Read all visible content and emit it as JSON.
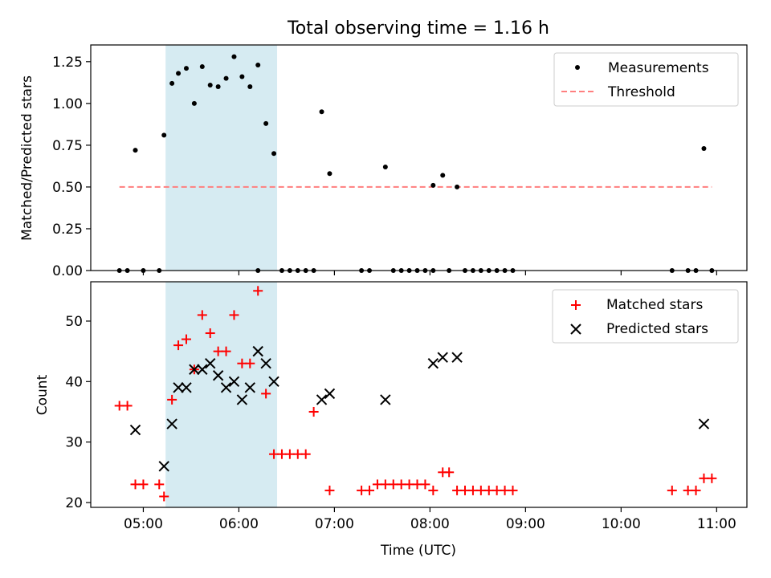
{
  "title": "Total observing time = 1.16 h",
  "chart_data": [
    {
      "type": "scatter",
      "panel": "top",
      "ylabel": "Matched/Predicted stars",
      "xlabel": "",
      "x_range": [
        "04:27",
        "11:19"
      ],
      "ylim": [
        0.0,
        1.35
      ],
      "yticks": [
        "0.00",
        "0.25",
        "0.50",
        "0.75",
        "1.00",
        "1.25"
      ],
      "shaded_interval": [
        "05:14",
        "06:24"
      ],
      "shade_color": "#add8e6",
      "legend_position": "top-right",
      "series": [
        {
          "name": "Measurements",
          "color": "#000000",
          "marker": "dot",
          "points": [
            [
              "04:45",
              0.0
            ],
            [
              "04:50",
              0.0
            ],
            [
              "04:55",
              0.72
            ],
            [
              "05:00",
              0.0
            ],
            [
              "05:10",
              0.0
            ],
            [
              "05:13",
              0.81
            ],
            [
              "05:18",
              1.12
            ],
            [
              "05:22",
              1.18
            ],
            [
              "05:27",
              1.21
            ],
            [
              "05:32",
              1.0
            ],
            [
              "05:37",
              1.22
            ],
            [
              "05:42",
              1.11
            ],
            [
              "05:47",
              1.1
            ],
            [
              "05:52",
              1.15
            ],
            [
              "05:57",
              1.28
            ],
            [
              "06:02",
              1.16
            ],
            [
              "06:07",
              1.1
            ],
            [
              "06:12",
              0.0
            ],
            [
              "06:12",
              1.23
            ],
            [
              "06:17",
              0.88
            ],
            [
              "06:22",
              0.7
            ],
            [
              "06:27",
              0.0
            ],
            [
              "06:32",
              0.0
            ],
            [
              "06:37",
              0.0
            ],
            [
              "06:42",
              0.0
            ],
            [
              "06:47",
              0.0
            ],
            [
              "06:52",
              0.95
            ],
            [
              "06:57",
              0.58
            ],
            [
              "07:17",
              0.0
            ],
            [
              "07:22",
              0.0
            ],
            [
              "07:32",
              0.62
            ],
            [
              "07:37",
              0.0
            ],
            [
              "07:42",
              0.0
            ],
            [
              "07:47",
              0.0
            ],
            [
              "07:52",
              0.0
            ],
            [
              "07:57",
              0.0
            ],
            [
              "08:02",
              0.0
            ],
            [
              "08:02",
              0.51
            ],
            [
              "08:08",
              0.57
            ],
            [
              "08:12",
              0.0
            ],
            [
              "08:17",
              0.5
            ],
            [
              "08:22",
              0.0
            ],
            [
              "08:27",
              0.0
            ],
            [
              "08:32",
              0.0
            ],
            [
              "08:37",
              0.0
            ],
            [
              "08:42",
              0.0
            ],
            [
              "08:47",
              0.0
            ],
            [
              "08:52",
              0.0
            ],
            [
              "10:32",
              0.0
            ],
            [
              "10:42",
              0.0
            ],
            [
              "10:47",
              0.0
            ],
            [
              "10:52",
              0.73
            ],
            [
              "10:57",
              0.0
            ]
          ]
        },
        {
          "name": "Threshold",
          "color": "#ff7f7f",
          "marker": "dashed-line",
          "points": [
            [
              "04:45",
              0.5
            ],
            [
              "10:57",
              0.5
            ]
          ]
        }
      ]
    },
    {
      "type": "scatter",
      "panel": "bottom",
      "xlabel": "Time (UTC)",
      "ylabel": "Count",
      "x_range": [
        "04:27",
        "11:19"
      ],
      "xticks": [
        "05:00",
        "06:00",
        "07:00",
        "08:00",
        "09:00",
        "10:00",
        "11:00"
      ],
      "ylim": [
        19.2,
        56.5
      ],
      "yticks": [
        "20",
        "30",
        "40",
        "50"
      ],
      "shaded_interval": [
        "05:14",
        "06:24"
      ],
      "shade_color": "#add8e6",
      "legend_position": "top-right",
      "series": [
        {
          "name": "Matched stars",
          "color": "#ff0000",
          "marker": "plus",
          "points": [
            [
              "04:45",
              36
            ],
            [
              "04:50",
              36
            ],
            [
              "04:55",
              23
            ],
            [
              "05:00",
              23
            ],
            [
              "05:10",
              23
            ],
            [
              "05:13",
              21
            ],
            [
              "05:18",
              37
            ],
            [
              "05:22",
              46
            ],
            [
              "05:27",
              47
            ],
            [
              "05:32",
              42
            ],
            [
              "05:37",
              51
            ],
            [
              "05:42",
              48
            ],
            [
              "05:47",
              45
            ],
            [
              "05:52",
              45
            ],
            [
              "05:57",
              51
            ],
            [
              "06:02",
              43
            ],
            [
              "06:07",
              43
            ],
            [
              "06:12",
              55
            ],
            [
              "06:17",
              38
            ],
            [
              "06:22",
              28
            ],
            [
              "06:27",
              28
            ],
            [
              "06:32",
              28
            ],
            [
              "06:37",
              28
            ],
            [
              "06:42",
              28
            ],
            [
              "06:47",
              35
            ],
            [
              "06:57",
              22
            ],
            [
              "07:17",
              22
            ],
            [
              "07:22",
              22
            ],
            [
              "07:27",
              23
            ],
            [
              "07:32",
              23
            ],
            [
              "07:37",
              23
            ],
            [
              "07:42",
              23
            ],
            [
              "07:47",
              23
            ],
            [
              "07:52",
              23
            ],
            [
              "07:57",
              23
            ],
            [
              "08:02",
              22
            ],
            [
              "08:08",
              25
            ],
            [
              "08:12",
              25
            ],
            [
              "08:17",
              22
            ],
            [
              "08:22",
              22
            ],
            [
              "08:27",
              22
            ],
            [
              "08:32",
              22
            ],
            [
              "08:37",
              22
            ],
            [
              "08:42",
              22
            ],
            [
              "08:47",
              22
            ],
            [
              "08:52",
              22
            ],
            [
              "10:32",
              22
            ],
            [
              "10:42",
              22
            ],
            [
              "10:47",
              22
            ],
            [
              "10:52",
              24
            ],
            [
              "10:57",
              24
            ]
          ]
        },
        {
          "name": "Predicted stars",
          "color": "#000000",
          "marker": "x",
          "points": [
            [
              "04:55",
              32
            ],
            [
              "05:13",
              26
            ],
            [
              "05:18",
              33
            ],
            [
              "05:22",
              39
            ],
            [
              "05:27",
              39
            ],
            [
              "05:32",
              42
            ],
            [
              "05:37",
              42
            ],
            [
              "05:42",
              43
            ],
            [
              "05:47",
              41
            ],
            [
              "05:52",
              39
            ],
            [
              "05:57",
              40
            ],
            [
              "06:02",
              37
            ],
            [
              "06:07",
              39
            ],
            [
              "06:12",
              45
            ],
            [
              "06:17",
              43
            ],
            [
              "06:22",
              40
            ],
            [
              "06:52",
              37
            ],
            [
              "06:57",
              38
            ],
            [
              "07:32",
              37
            ],
            [
              "08:02",
              43
            ],
            [
              "08:08",
              44
            ],
            [
              "08:17",
              44
            ],
            [
              "10:52",
              33
            ]
          ]
        }
      ]
    }
  ]
}
